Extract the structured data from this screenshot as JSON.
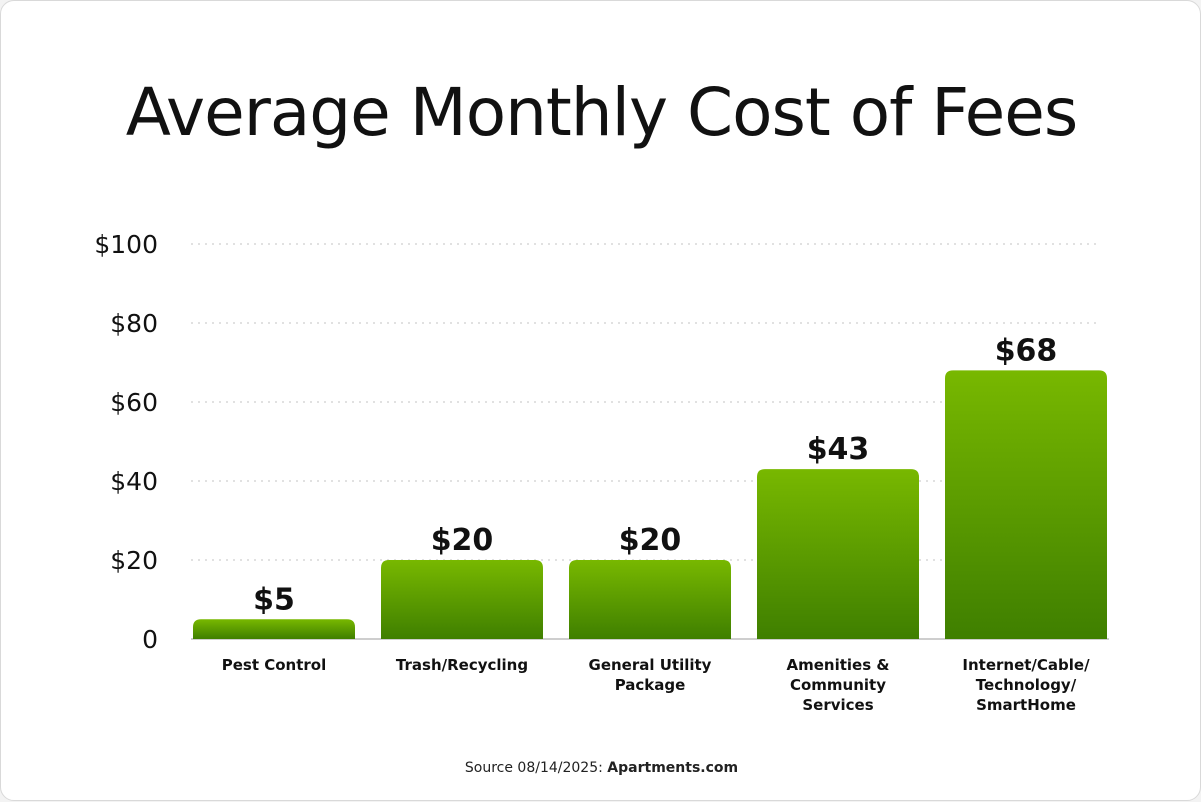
{
  "title": "Average Monthly Cost of Fees",
  "source": {
    "prefix": "Source 08/14/2025: ",
    "name": "Apartments.com"
  },
  "colors": {
    "bar_top": "#78b800",
    "bar_bottom": "#3f7f00",
    "grid": "#cfcfcf",
    "text": "#111111"
  },
  "chart_data": {
    "type": "bar",
    "categories": [
      [
        "Pest Control"
      ],
      [
        "Trash/Recycling"
      ],
      [
        "General Utility",
        "Package"
      ],
      [
        "Amenities &",
        "Community",
        "Services"
      ],
      [
        "Internet/Cable/",
        "Technology/",
        "SmartHome"
      ]
    ],
    "values": [
      5,
      20,
      20,
      43,
      68
    ],
    "value_labels": [
      "$5",
      "$20",
      "$20",
      "$43",
      "$68"
    ],
    "yticks": [
      0,
      20,
      40,
      60,
      80,
      100
    ],
    "ytick_labels": [
      "0",
      "$20",
      "$40",
      "$60",
      "$80",
      "$100"
    ],
    "ylim": [
      0,
      100
    ],
    "grid": true,
    "legend": false
  }
}
